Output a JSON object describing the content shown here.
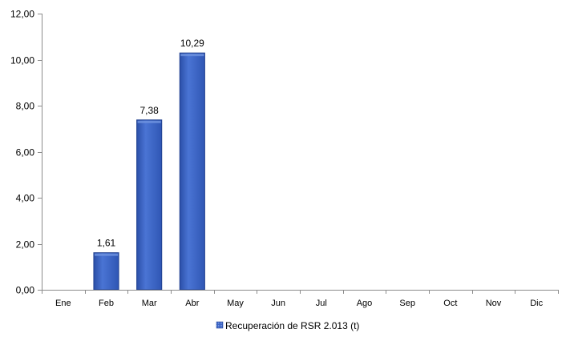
{
  "chart_data": {
    "type": "bar",
    "categories": [
      "Ene",
      "Feb",
      "Mar",
      "Abr",
      "May",
      "Jun",
      "Jul",
      "Ago",
      "Sep",
      "Oct",
      "Nov",
      "Dic"
    ],
    "series": [
      {
        "name": "Recuperación de RSR 2.013 (t)",
        "values": [
          null,
          1.61,
          7.38,
          10.29,
          null,
          null,
          null,
          null,
          null,
          null,
          null,
          null
        ],
        "data_labels": [
          "",
          "1,61",
          "7,38",
          "10,29",
          "",
          "",
          "",
          "",
          "",
          "",
          "",
          ""
        ]
      }
    ],
    "title": "",
    "xlabel": "",
    "ylabel": "",
    "ylim": [
      0,
      12
    ],
    "y_ticks": [
      0,
      2,
      4,
      6,
      8,
      10,
      12
    ],
    "y_tick_labels": [
      "0,00",
      "2,00",
      "4,00",
      "6,00",
      "8,00",
      "10,00",
      "12,00"
    ],
    "grid": false,
    "legend_position": "bottom",
    "colors": {
      "bar_fill": "#3a62c4",
      "bar_edge": "#1f3f8f",
      "bar_light": "#6f93e0"
    }
  }
}
